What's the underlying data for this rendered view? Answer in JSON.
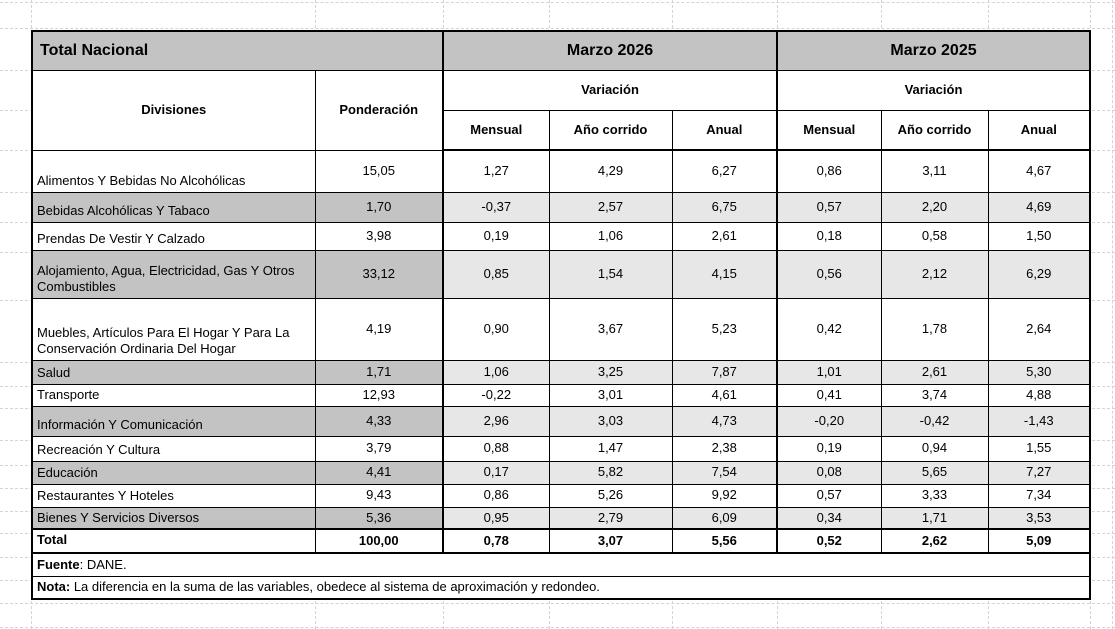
{
  "table": {
    "title": "Total Nacional",
    "periods": [
      "Marzo 2026",
      "Marzo 2025"
    ],
    "variacion_label": "Variación",
    "columns": {
      "divisiones": "Divisiones",
      "ponderacion": "Ponderación",
      "mensual": "Mensual",
      "ano_corrido": "Año corrido",
      "anual": "Anual"
    },
    "rows": [
      {
        "name": "Alimentos Y Bebidas No Alcohólicas",
        "ponderacion": "15,05",
        "values": [
          "1,27",
          "4,29",
          "6,27",
          "0,86",
          "3,11",
          "4,67"
        ],
        "shaded": false
      },
      {
        "name": "Bebidas Alcohólicas Y Tabaco",
        "ponderacion": "1,70",
        "values": [
          "-0,37",
          "2,57",
          "6,75",
          "0,57",
          "2,20",
          "4,69"
        ],
        "shaded": true
      },
      {
        "name": "Prendas De Vestir Y Calzado",
        "ponderacion": "3,98",
        "values": [
          "0,19",
          "1,06",
          "2,61",
          "0,18",
          "0,58",
          "1,50"
        ],
        "shaded": false
      },
      {
        "name": "Alojamiento, Agua, Electricidad, Gas Y Otros Combustibles",
        "ponderacion": "33,12",
        "values": [
          "0,85",
          "1,54",
          "4,15",
          "0,56",
          "2,12",
          "6,29"
        ],
        "shaded": true
      },
      {
        "name": "Muebles, Artículos Para El Hogar Y Para La Conservación Ordinaria Del Hogar",
        "ponderacion": "4,19",
        "values": [
          "0,90",
          "3,67",
          "5,23",
          "0,42",
          "1,78",
          "2,64"
        ],
        "shaded": false
      },
      {
        "name": "Salud",
        "ponderacion": "1,71",
        "values": [
          "1,06",
          "3,25",
          "7,87",
          "1,01",
          "2,61",
          "5,30"
        ],
        "shaded": true
      },
      {
        "name": "Transporte",
        "ponderacion": "12,93",
        "values": [
          "-0,22",
          "3,01",
          "4,61",
          "0,41",
          "3,74",
          "4,88"
        ],
        "shaded": false
      },
      {
        "name": "Información Y Comunicación",
        "ponderacion": "4,33",
        "values": [
          "2,96",
          "3,03",
          "4,73",
          "-0,20",
          "-0,42",
          "-1,43"
        ],
        "shaded": true
      },
      {
        "name": "Recreación Y Cultura",
        "ponderacion": "3,79",
        "values": [
          "0,88",
          "1,47",
          "2,38",
          "0,19",
          "0,94",
          "1,55"
        ],
        "shaded": false
      },
      {
        "name": "Educación",
        "ponderacion": "4,41",
        "values": [
          "0,17",
          "5,82",
          "7,54",
          "0,08",
          "5,65",
          "7,27"
        ],
        "shaded": true
      },
      {
        "name": "Restaurantes Y Hoteles",
        "ponderacion": "9,43",
        "values": [
          "0,86",
          "5,26",
          "9,92",
          "0,57",
          "3,33",
          "7,34"
        ],
        "shaded": false
      },
      {
        "name": "Bienes Y Servicios Diversos",
        "ponderacion": "5,36",
        "values": [
          "0,95",
          "2,79",
          "6,09",
          "0,34",
          "1,71",
          "3,53"
        ],
        "shaded": true
      }
    ],
    "total": {
      "label": "Total",
      "ponderacion": "100,00",
      "values": [
        "0,78",
        "3,07",
        "5,56",
        "0,52",
        "2,62",
        "5,09"
      ]
    },
    "fuente": {
      "label": "Fuente",
      "text": ": DANE."
    },
    "nota": {
      "label": "Nota:",
      "text": " La diferencia en la suma de las variables, obedece al sistema de aproximación y redondeo."
    }
  },
  "colors": {
    "header_gray": "#c3c3c3",
    "shaded_value_gray": "#e7e7e7",
    "border_black": "#000000",
    "gridline_gray": "#d4d4d4"
  }
}
